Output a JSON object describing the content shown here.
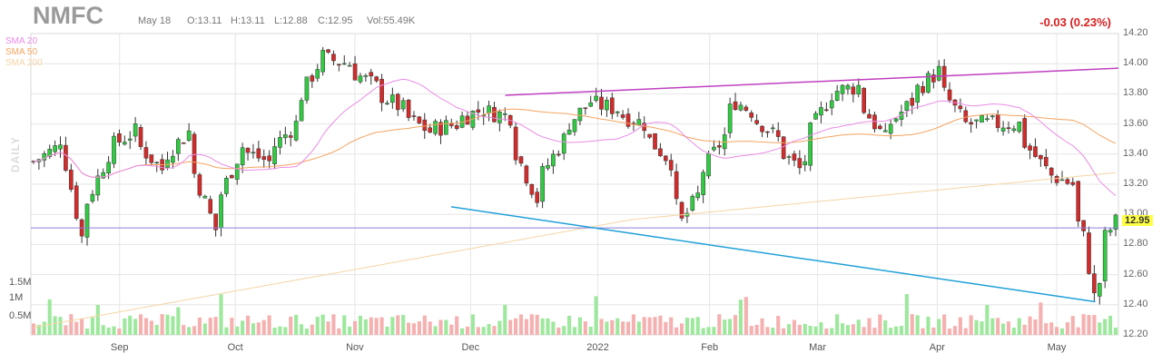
{
  "header": {
    "ticker": "NMFC",
    "date": "May 18",
    "open": "O:13.11",
    "high": "H:13.11",
    "low": "L:12.88",
    "close": "C:12.95",
    "volume": "Vol:55.49K",
    "change": "-0.03 (0.23%)"
  },
  "legend": [
    {
      "label": "SMA 20",
      "color": "#e98be6"
    },
    {
      "label": "SMA 50",
      "color": "#f4a460"
    },
    {
      "label": "SMA 200",
      "color": "#f5d5a5"
    }
  ],
  "watermark": "DAILY",
  "last_price_label": "12.95",
  "colors": {
    "up": "#2ecc40",
    "down": "#d42a2a",
    "vol_up": "#9ee89e",
    "vol_down": "#f5b0b0",
    "trend_top": "#c040c0",
    "trend_bottom": "#1fa0d8",
    "hline": "#8b7fd8"
  },
  "chart_data": {
    "type": "candlestick",
    "title": "NMFC",
    "ylim": [
      12.2,
      14.2
    ],
    "y_ticks": [
      "14.20",
      "14.00",
      "13.80",
      "13.60",
      "13.40",
      "13.20",
      "13.00",
      "12.80",
      "12.60",
      "12.40",
      "12.20"
    ],
    "x_ticks": [
      "Sep",
      "Oct",
      "Nov",
      "Dec",
      "2022",
      "Feb",
      "Mar",
      "Apr",
      "May"
    ],
    "volume_ticks": [
      "1.5M",
      "1M",
      "0.5M"
    ],
    "volume_range": [
      0,
      1500000
    ],
    "horizontal_line": 12.91,
    "trendline_upper": {
      "from": [
        "2021-12-10",
        13.79
      ],
      "to": [
        "2022-05-18",
        13.97
      ]
    },
    "trendline_lower": {
      "from": [
        "2021-11-26",
        13.05
      ],
      "to": [
        "2022-05-12",
        12.42
      ]
    },
    "close_series_anchors": [
      {
        "date": "2021-08-09",
        "close": 13.35
      },
      {
        "date": "2021-08-16",
        "close": 13.5
      },
      {
        "date": "2021-08-20",
        "close": 12.85
      },
      {
        "date": "2021-08-27",
        "close": 13.4
      },
      {
        "date": "2021-09-03",
        "close": 13.55
      },
      {
        "date": "2021-09-10",
        "close": 13.3
      },
      {
        "date": "2021-09-17",
        "close": 13.55
      },
      {
        "date": "2021-09-24",
        "close": 12.9
      },
      {
        "date": "2021-10-01",
        "close": 13.45
      },
      {
        "date": "2021-10-08",
        "close": 13.35
      },
      {
        "date": "2021-10-15",
        "close": 13.6
      },
      {
        "date": "2021-10-22",
        "close": 14.05
      },
      {
        "date": "2021-10-29",
        "close": 14.0
      },
      {
        "date": "2021-11-05",
        "close": 13.85
      },
      {
        "date": "2021-11-12",
        "close": 13.7
      },
      {
        "date": "2021-11-19",
        "close": 13.55
      },
      {
        "date": "2021-11-26",
        "close": 13.6
      },
      {
        "date": "2021-12-03",
        "close": 13.7
      },
      {
        "date": "2021-12-10",
        "close": 13.65
      },
      {
        "date": "2021-12-17",
        "close": 13.1
      },
      {
        "date": "2021-12-24",
        "close": 13.5
      },
      {
        "date": "2021-12-31",
        "close": 13.75
      },
      {
        "date": "2022-01-07",
        "close": 13.7
      },
      {
        "date": "2022-01-14",
        "close": 13.6
      },
      {
        "date": "2022-01-21",
        "close": 13.35
      },
      {
        "date": "2022-01-25",
        "close": 12.95
      },
      {
        "date": "2022-02-01",
        "close": 13.35
      },
      {
        "date": "2022-02-08",
        "close": 13.75
      },
      {
        "date": "2022-02-15",
        "close": 13.6
      },
      {
        "date": "2022-02-24",
        "close": 13.3
      },
      {
        "date": "2022-03-04",
        "close": 13.8
      },
      {
        "date": "2022-03-11",
        "close": 13.85
      },
      {
        "date": "2022-03-18",
        "close": 13.5
      },
      {
        "date": "2022-03-25",
        "close": 13.75
      },
      {
        "date": "2022-04-01",
        "close": 13.95
      },
      {
        "date": "2022-04-08",
        "close": 13.6
      },
      {
        "date": "2022-04-15",
        "close": 13.6
      },
      {
        "date": "2022-04-22",
        "close": 13.6
      },
      {
        "date": "2022-04-29",
        "close": 13.3
      },
      {
        "date": "2022-05-06",
        "close": 13.2
      },
      {
        "date": "2022-05-10",
        "close": 12.85
      },
      {
        "date": "2022-05-12",
        "close": 12.45
      },
      {
        "date": "2022-05-16",
        "close": 12.85
      },
      {
        "date": "2022-05-18",
        "close": 12.95
      }
    ]
  }
}
